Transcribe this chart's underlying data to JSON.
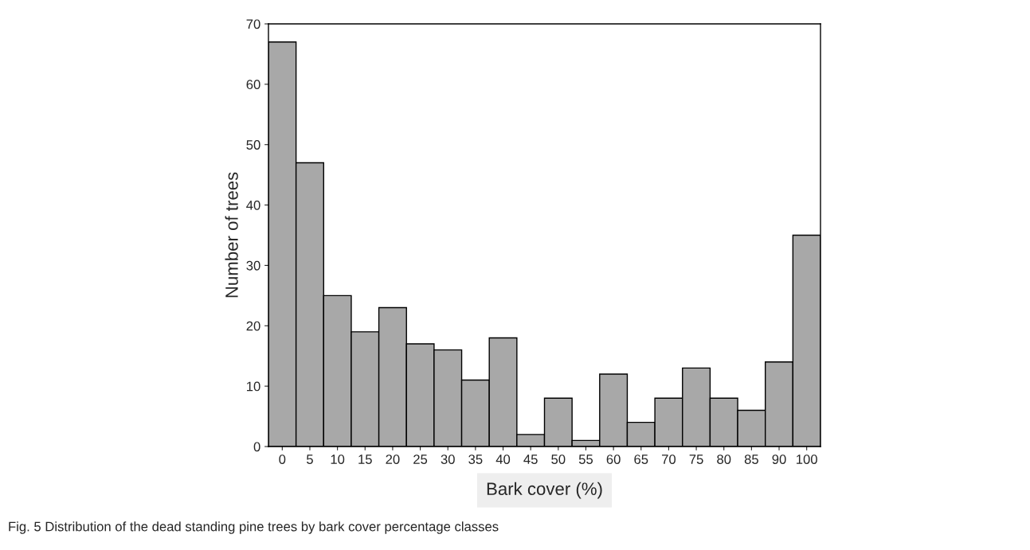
{
  "chart_data": {
    "type": "bar",
    "categories": [
      "0",
      "5",
      "10",
      "15",
      "20",
      "25",
      "30",
      "35",
      "40",
      "45",
      "50",
      "55",
      "60",
      "65",
      "70",
      "75",
      "80",
      "85",
      "90",
      "100"
    ],
    "values": [
      67,
      47,
      25,
      19,
      23,
      17,
      16,
      11,
      18,
      2,
      8,
      1,
      12,
      4,
      8,
      13,
      8,
      6,
      14,
      35
    ],
    "color": "#a8a8a8",
    "xlabel": "Bark cover (%)",
    "ylabel": "Number of trees",
    "ylim": [
      0,
      70
    ],
    "yticks": [
      0,
      10,
      20,
      30,
      40,
      50,
      60,
      70
    ],
    "grid": false,
    "annotations": [
      "Fig. 5 Distribution of the dead standing pine trees by bark cover percentage classes"
    ]
  }
}
